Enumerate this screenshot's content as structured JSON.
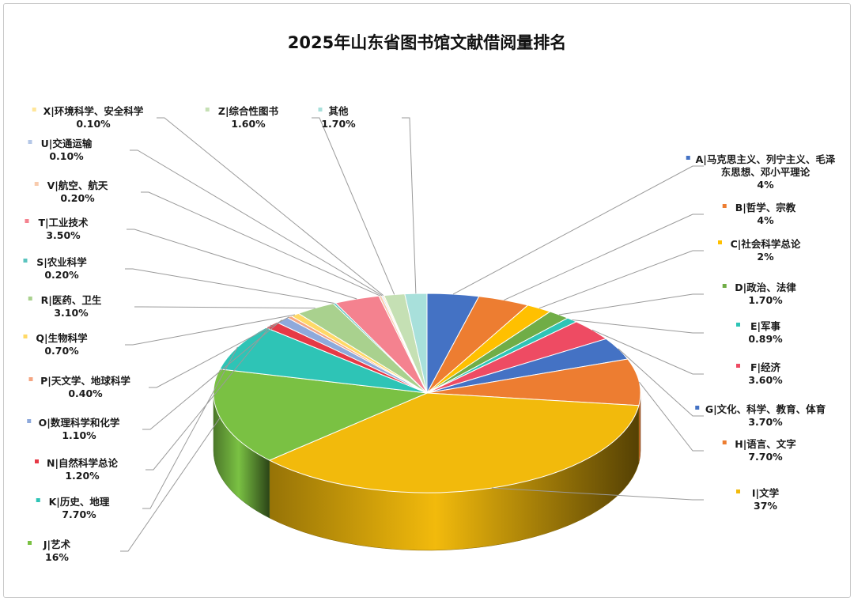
{
  "chart_data": {
    "type": "pie",
    "title": "2025年山东省图书馆文献借阅量排名",
    "slices": [
      {
        "name": "A|马克思主义、列宁主义、毛泽东思想、邓小平理论",
        "label_lines": [
          "A|马克思主义、列宁主义、毛泽",
          "东思想、邓小平理论"
        ],
        "value_label": "4%",
        "value": 4,
        "color": "#4472C4"
      },
      {
        "name": "B|哲学、宗教",
        "value_label": "4%",
        "value": 4,
        "color": "#ED7D31"
      },
      {
        "name": "C|社会科学总论",
        "value_label": "2%",
        "value": 2,
        "color": "#FFC000"
      },
      {
        "name": "D|政治、法律",
        "value_label": "1.70%",
        "value": 1.7,
        "color": "#70AD47"
      },
      {
        "name": "E|军事",
        "value_label": "0.89%",
        "value": 0.89,
        "color": "#2EC4B6"
      },
      {
        "name": "F|经济",
        "value_label": "3.60%",
        "value": 3.6,
        "color": "#EE4B63"
      },
      {
        "name": "G|文化、科学、教育、体育",
        "value_label": "3.70%",
        "value": 3.7,
        "color": "#4472C4"
      },
      {
        "name": "H|语言、文字",
        "value_label": "7.70%",
        "value": 7.7,
        "color": "#ED7D31"
      },
      {
        "name": "I|文学",
        "value_label": "37%",
        "value": 37,
        "color": "#F2BA0C"
      },
      {
        "name": "J|艺术",
        "value_label": "16%",
        "value": 16,
        "color": "#7AC143"
      },
      {
        "name": "K|历史、地理",
        "value_label": "7.70%",
        "value": 7.7,
        "color": "#2EC4B6"
      },
      {
        "name": "N|自然科学总论",
        "value_label": "1.20%",
        "value": 1.2,
        "color": "#E63946"
      },
      {
        "name": "O|数理科学和化学",
        "value_label": "1.10%",
        "value": 1.1,
        "color": "#8EA9DB"
      },
      {
        "name": "P|天文学、地球科学",
        "value_label": "0.40%",
        "value": 0.4,
        "color": "#F4A582"
      },
      {
        "name": "Q|生物科学",
        "value_label": "0.70%",
        "value": 0.7,
        "color": "#FFD966"
      },
      {
        "name": "R|医药、卫生",
        "value_label": "3.10%",
        "value": 3.1,
        "color": "#A9D18E"
      },
      {
        "name": "S|农业科学",
        "value_label": "0.20%",
        "value": 0.2,
        "color": "#5BC4BF"
      },
      {
        "name": "T|工业技术",
        "value_label": "3.50%",
        "value": 3.5,
        "color": "#F4828F"
      },
      {
        "name": "V|航空、航天",
        "value_label": "0.20%",
        "value": 0.2,
        "color": "#F8CBAD"
      },
      {
        "name": "U|交通运输",
        "value_label": "0.10%",
        "value": 0.1,
        "color": "#B4C7E7"
      },
      {
        "name": "X|环境科学、安全科学",
        "value_label": "0.10%",
        "value": 0.1,
        "color": "#FFE699"
      },
      {
        "name": "Z|综合性图书",
        "value_label": "1.60%",
        "value": 1.6,
        "color": "#C5E0B4"
      },
      {
        "name": "其他",
        "value_label": "1.70%",
        "value": 1.7,
        "color": "#A8E0DB"
      }
    ],
    "style": "3d-pie",
    "legend": "none",
    "data_labels": "category name and percentage with leader lines"
  }
}
